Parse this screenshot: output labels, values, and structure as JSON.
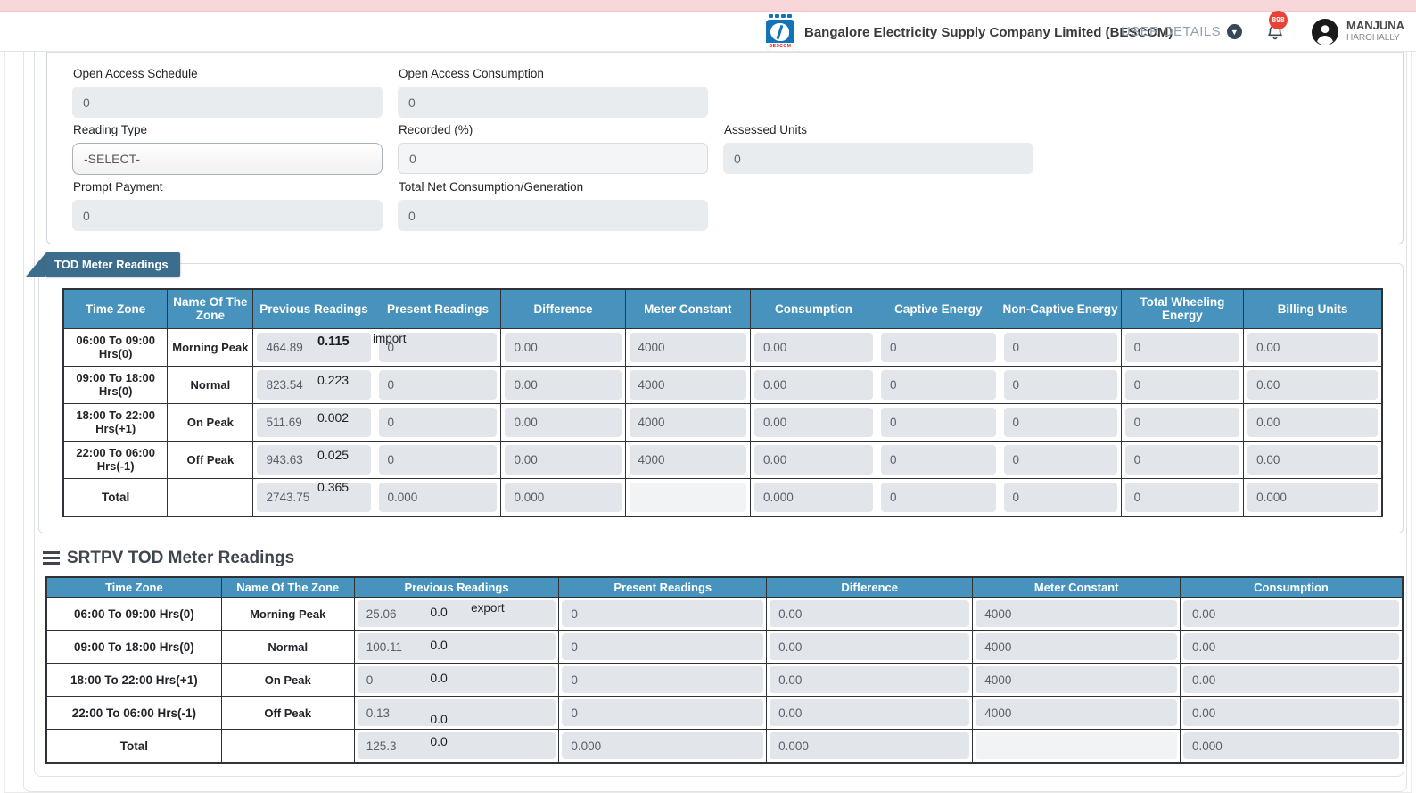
{
  "header": {
    "company": "Bangalore Electricity Supply Company Limited (BESCOM)",
    "logo_text": "BESCOM",
    "user_details_label": "USER DETAILS",
    "notification_count": "898",
    "user_name": "MANJUNA",
    "user_location": "HAROHALLY"
  },
  "form": {
    "open_access_schedule": {
      "label": "Open Access Schedule",
      "value": "0"
    },
    "open_access_consumption": {
      "label": "Open Access Consumption",
      "value": "0"
    },
    "reading_type": {
      "label": "Reading Type",
      "value": "-SELECT-"
    },
    "recorded": {
      "label": "Recorded (%)",
      "value": "0"
    },
    "assessed_units": {
      "label": "Assessed Units",
      "value": "0"
    },
    "prompt_payment": {
      "label": "Prompt Payment",
      "value": "0"
    },
    "total_net": {
      "label": "Total Net Consumption/Generation",
      "value": "0"
    }
  },
  "tod": {
    "tab_label": "TOD Meter Readings",
    "columns": [
      "Time Zone",
      "Name Of The Zone",
      "Previous Readings",
      "Present Readings",
      "Difference",
      "Meter Constant",
      "Consumption",
      "Captive Energy",
      "Non-Captive Energy",
      "Total Wheeling Energy",
      "Billing Units"
    ],
    "rows": [
      {
        "time_zone": "06:00  To 09:00 Hrs(0)",
        "zone": "Morning Peak",
        "previous": "464.89",
        "overlay": "0.115",
        "overlay_bold": true,
        "flow_note": "import",
        "present": "0",
        "difference": "0.00",
        "meter_constant": "4000",
        "consumption": "0.00",
        "captive": "0",
        "non_captive": "0",
        "wheeling": "0",
        "billing": "0.00"
      },
      {
        "time_zone": "09:00 To 18:00 Hrs(0)",
        "zone": "Normal",
        "previous": "823.54",
        "overlay": "0.223",
        "present": "0",
        "difference": "0.00",
        "meter_constant": "4000",
        "consumption": "0.00",
        "captive": "0",
        "non_captive": "0",
        "wheeling": "0",
        "billing": "0.00"
      },
      {
        "time_zone": "18:00  To 22:00 Hrs(+1)",
        "zone": "On Peak",
        "previous": "511.69",
        "overlay": "0.002",
        "present": "0",
        "difference": "0.00",
        "meter_constant": "4000",
        "consumption": "0.00",
        "captive": "0",
        "non_captive": "0",
        "wheeling": "0",
        "billing": "0.00"
      },
      {
        "time_zone": "22:00  To 06:00 Hrs(-1)",
        "zone": "Off Peak",
        "previous": "943.63",
        "overlay": "0.025",
        "present": "0",
        "difference": "0.00",
        "meter_constant": "4000",
        "consumption": "0.00",
        "captive": "0",
        "non_captive": "0",
        "wheeling": "0",
        "billing": "0.00"
      }
    ],
    "total": {
      "time_zone": "Total",
      "zone": "",
      "previous": "2743.75",
      "overlay": "0.365",
      "present": "0.000",
      "difference": "0.000",
      "meter_constant": "",
      "consumption": "0.000",
      "captive": "0",
      "non_captive": "0",
      "wheeling": "0",
      "billing": "0.000"
    }
  },
  "srtpv": {
    "heading": "SRTPV TOD Meter Readings",
    "columns": [
      "Time Zone",
      "Name Of The Zone",
      "Previous Readings",
      "Present Readings",
      "Difference",
      "Meter Constant",
      "Consumption"
    ],
    "rows": [
      {
        "time_zone": "06:00  To 09:00 Hrs(0)",
        "zone": "Morning Peak",
        "previous": "25.06",
        "overlay": "0.0",
        "flow_note": "export",
        "present": "0",
        "difference": "0.00",
        "meter_constant": "4000",
        "consumption": "0.00"
      },
      {
        "time_zone": "09:00 To 18:00 Hrs(0)",
        "zone": "Normal",
        "previous": "100.11",
        "overlay": "0.0",
        "present": "0",
        "difference": "0.00",
        "meter_constant": "4000",
        "consumption": "0.00"
      },
      {
        "time_zone": "18:00  To 22:00 Hrs(+1)",
        "zone": "On Peak",
        "previous": "0",
        "overlay": "0.0",
        "present": "0",
        "difference": "0.00",
        "meter_constant": "4000",
        "consumption": "0.00"
      },
      {
        "time_zone": "22:00  To 06:00 Hrs(-1)",
        "zone": "Off Peak",
        "previous": "0.13",
        "overlay": "0.0",
        "present": "0",
        "difference": "0.00",
        "meter_constant": "4000",
        "consumption": "0.00"
      }
    ],
    "total": {
      "time_zone": "Total",
      "zone": "",
      "previous": "125.3",
      "overlay": "0.0",
      "present": "0.000",
      "difference": "0.000",
      "meter_constant": "",
      "consumption": "0.000"
    }
  },
  "colors": {
    "table_header_blue": "#4793be",
    "tab_blue": "#3c6d8d",
    "alert_pink": "#f8d7da",
    "badge_red": "#e94335",
    "input_gray": "#e2e6ea"
  }
}
